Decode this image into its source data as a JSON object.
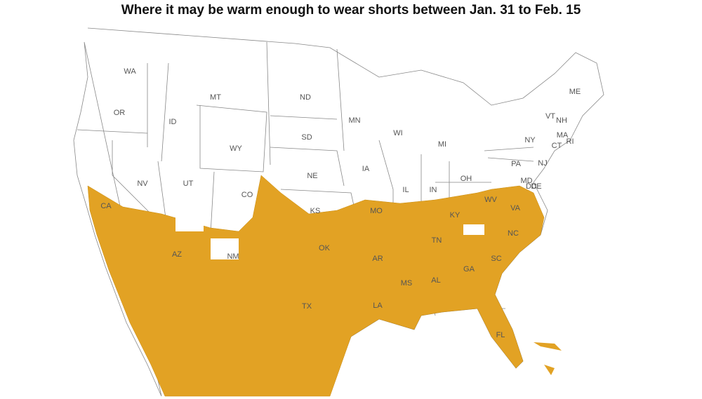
{
  "title": "Where it may be warm enough to wear shorts between Jan. 31 to Feb. 15",
  "states": [
    "WA",
    "MT",
    "ND",
    "OR",
    "ID",
    "WY",
    "SD",
    "MN",
    "WI",
    "MI",
    "ME",
    "VT",
    "NH",
    "NY",
    "MA",
    "CT",
    "RI",
    "NV",
    "UT",
    "CO",
    "NE",
    "IA",
    "IL",
    "IN",
    "OH",
    "PA",
    "NJ",
    "MD",
    "DE",
    "DC",
    "WV",
    "VA",
    "KY",
    "KS",
    "MO",
    "CA",
    "AZ",
    "NM",
    "OK",
    "AR",
    "TN",
    "NC",
    "SC",
    "MS",
    "AL",
    "GA",
    "LA",
    "TX",
    "FL"
  ]
}
